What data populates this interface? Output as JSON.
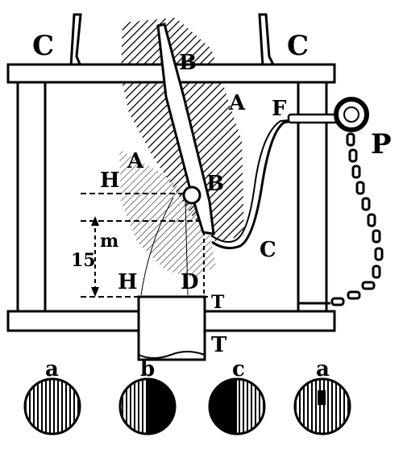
{
  "labels": {
    "c_left": "C",
    "c_right": "C",
    "a_upper": "A",
    "a_left": "A",
    "b_upper": "B",
    "b_lower": "B",
    "f": "F",
    "p": "P",
    "c_curve": "C",
    "h_upper": "H",
    "h_lower": "H",
    "m": "m",
    "fifteen": "15",
    "d": "D",
    "t_small": "T",
    "t_large": "T"
  },
  "circles": {
    "circle_1": "a",
    "circle_2": "b",
    "circle_3": "c",
    "circle_4": "a"
  }
}
